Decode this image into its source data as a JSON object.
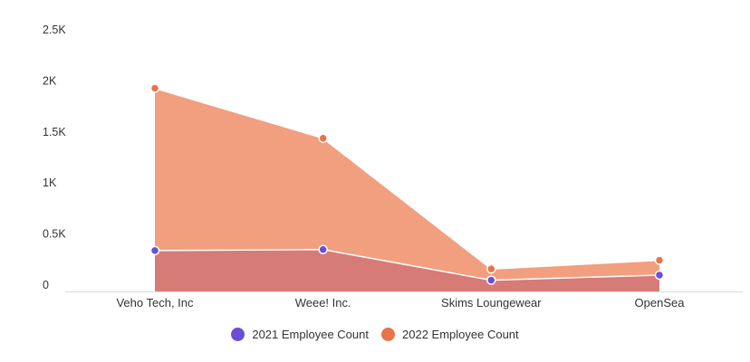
{
  "chart_data": {
    "type": "area",
    "categories": [
      "Veho Tech, Inc",
      "Weee! Inc.",
      "Skims Loungewear",
      "OpenSea"
    ],
    "series": [
      {
        "name": "2021 Employee Count",
        "values": [
          400,
          410,
          110,
          160
        ],
        "color": "#6a4fd6",
        "fill": "#d77b77"
      },
      {
        "name": "2022 Employee Count",
        "values": [
          1990,
          1500,
          220,
          305
        ],
        "color": "#e8744a",
        "fill": "#f19f7f"
      }
    ],
    "ylim": [
      0,
      2500
    ],
    "yticks": [
      0,
      500,
      1000,
      1500,
      2000,
      2500
    ],
    "ytick_labels": [
      "0",
      "0.5K",
      "1K",
      "1.5K",
      "2K",
      "2.5K"
    ],
    "grid": false,
    "legend_position": "bottom"
  }
}
